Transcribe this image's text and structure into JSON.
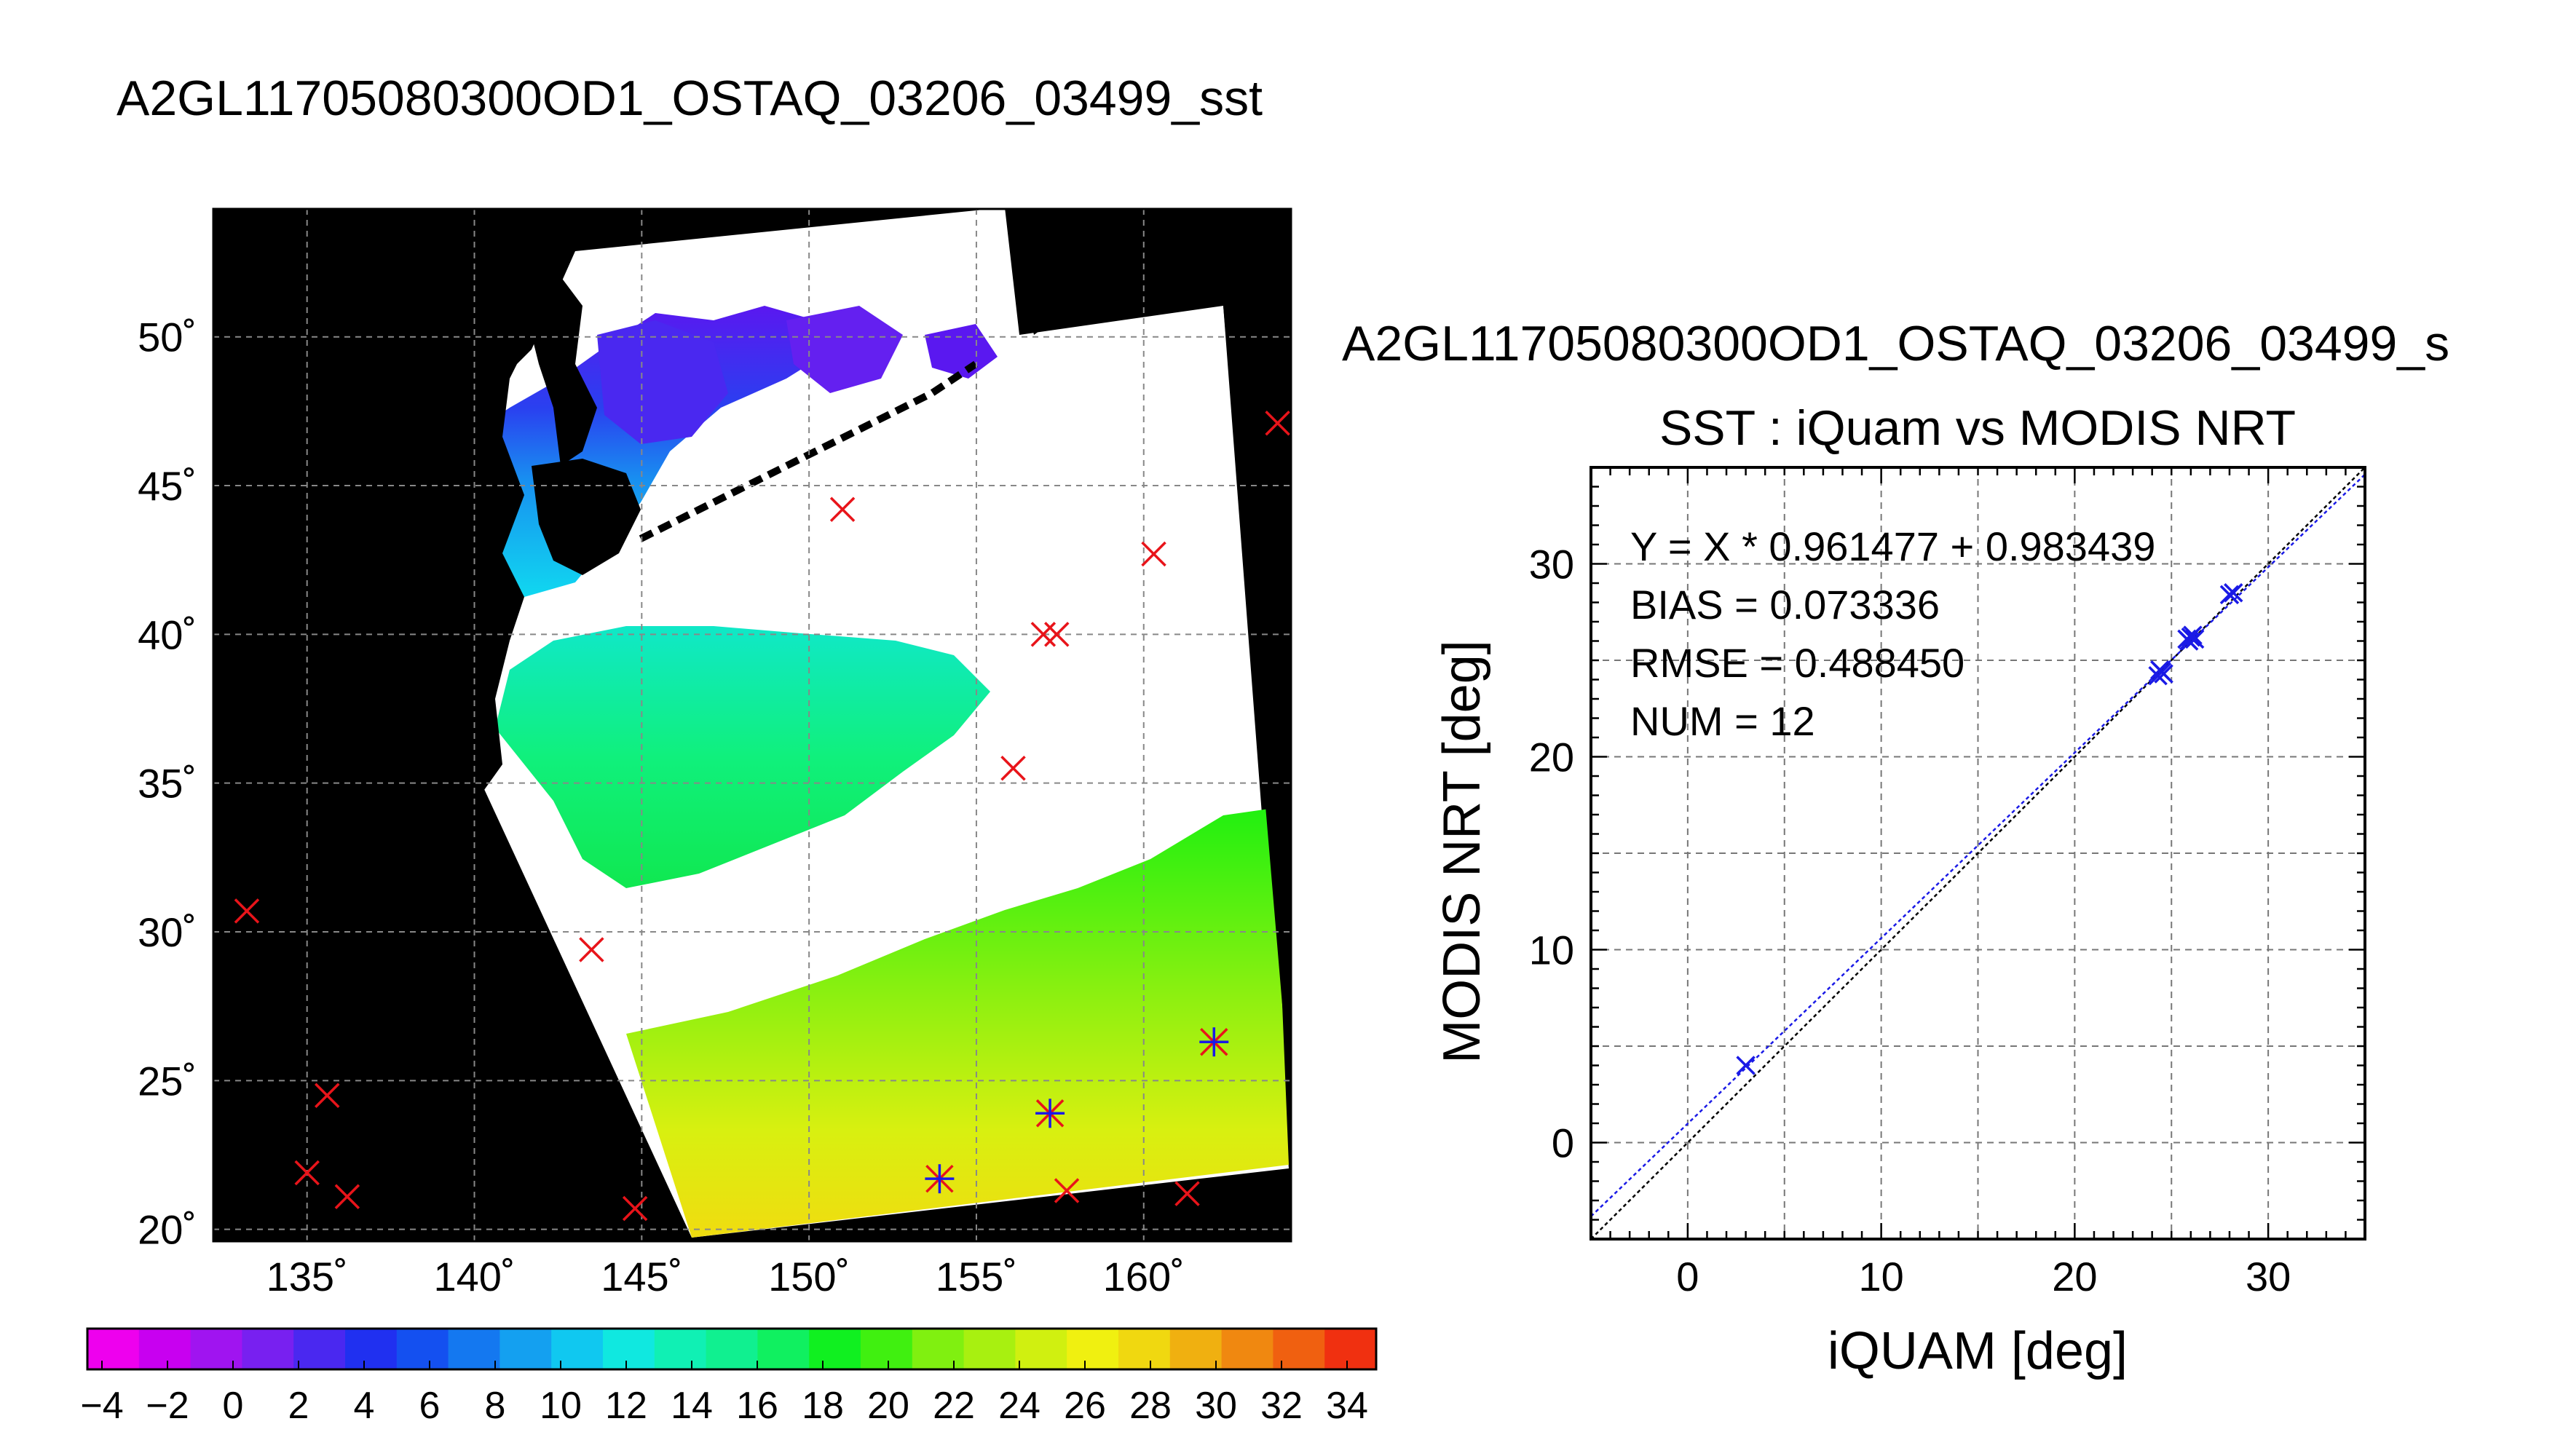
{
  "page_title": "A2GL11705080300OD1_OSTAQ_03206_03499_sst",
  "map": {
    "lon_ticks": [
      "135˚",
      "140˚",
      "145˚",
      "150˚",
      "155˚",
      "160˚"
    ],
    "lat_ticks": [
      "50˚",
      "45˚",
      "40˚",
      "35˚",
      "30˚",
      "25˚",
      "20˚"
    ],
    "lon_range": [
      132.2,
      164.4
    ],
    "lat_range": [
      19.6,
      54.3
    ],
    "grid_lons": [
      135,
      140,
      145,
      150,
      155,
      160
    ],
    "grid_lats": [
      20,
      25,
      30,
      35,
      40,
      45,
      50
    ],
    "background_color": "#000000",
    "cloud_color": "#ffffff",
    "marker_color": "#e8141a",
    "matched_marker_color": "#1a1ae6",
    "buoy_markers": [
      [
        133.2,
        30.7
      ],
      [
        135.0,
        21.9
      ],
      [
        135.6,
        24.5
      ],
      [
        136.2,
        21.1
      ],
      [
        143.5,
        29.4
      ],
      [
        144.8,
        20.7
      ],
      [
        151.0,
        44.2
      ],
      [
        157.0,
        40.0
      ],
      [
        157.4,
        40.0
      ],
      [
        156.1,
        35.5
      ],
      [
        160.3,
        42.7
      ],
      [
        164.0,
        47.1
      ],
      [
        157.7,
        21.3
      ],
      [
        161.3,
        21.2
      ]
    ],
    "matched_markers": [
      [
        153.9,
        21.7
      ],
      [
        157.2,
        23.9
      ],
      [
        162.1,
        26.3
      ]
    ]
  },
  "colorbar": {
    "labels": [
      "−4",
      "−2",
      "0",
      "2",
      "4",
      "6",
      "8",
      "10",
      "12",
      "14",
      "16",
      "18",
      "20",
      "22",
      "24",
      "26",
      "28",
      "30",
      "32",
      "34"
    ],
    "colors": [
      "#ee00ee",
      "#c800f0",
      "#a014f0",
      "#7820f0",
      "#4a28f0",
      "#2030f0",
      "#1450f0",
      "#1478f0",
      "#14a0f0",
      "#10c8f0",
      "#10e8e0",
      "#10f0b4",
      "#10f090",
      "#10f060",
      "#10f020",
      "#40f010",
      "#80f010",
      "#a8f010",
      "#d0f010",
      "#f0f010",
      "#f0d810",
      "#f0b010",
      "#f08810",
      "#f06010",
      "#f03010"
    ]
  },
  "scatter": {
    "subtitle": "A2GL11705080300OD1_OSTAQ_03206_03499_s",
    "title": "SST : iQuam vs MODIS NRT",
    "stats": [
      "Y = X * 0.961477 + 0.983439",
      "BIAS = 0.073336",
      "RMSE = 0.488450",
      "NUM = 12"
    ],
    "xlabel": "iQUAM [deg]",
    "ylabel": "MODIS NRT [deg]",
    "x_ticks": [
      "0",
      "10",
      "20",
      "30"
    ],
    "y_ticks": [
      "30",
      "20",
      "10",
      "0"
    ],
    "color": "#1a1ae6"
  },
  "chart_data": {
    "type": "scatter",
    "title": "SST : iQuam vs MODIS NRT",
    "xlabel": "iQUAM [deg]",
    "ylabel": "MODIS NRT [deg]",
    "xlim": [
      -5,
      35
    ],
    "ylim": [
      -5,
      35
    ],
    "grid": true,
    "fit": {
      "slope": 0.961477,
      "intercept": 0.983439
    },
    "points": [
      [
        3.0,
        4.0
      ],
      [
        24.3,
        24.2
      ],
      [
        24.5,
        24.4
      ],
      [
        24.6,
        24.3
      ],
      [
        25.8,
        26.1
      ],
      [
        26.0,
        26.2
      ],
      [
        26.1,
        26.3
      ],
      [
        26.2,
        26.1
      ],
      [
        28.0,
        28.4
      ],
      [
        28.2,
        28.5
      ],
      [
        24.4,
        24.5
      ],
      [
        25.9,
        26.0
      ]
    ]
  }
}
